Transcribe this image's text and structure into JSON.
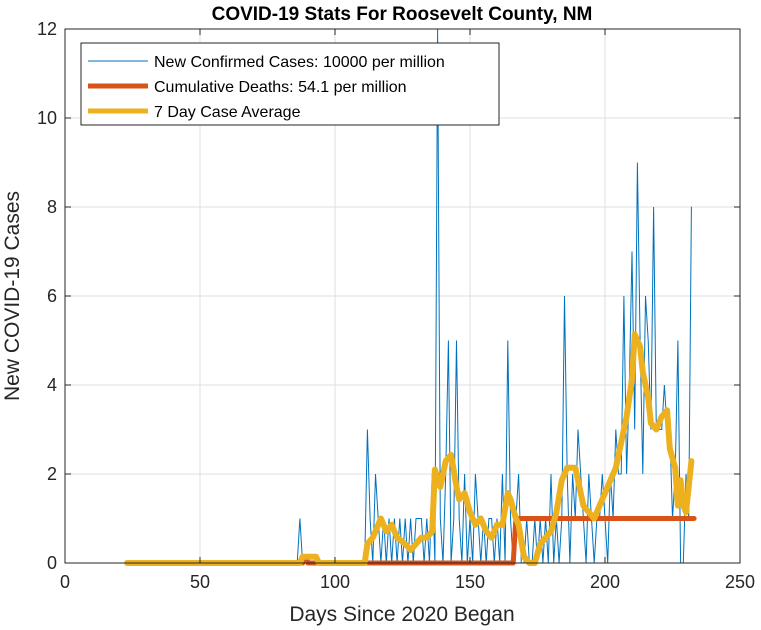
{
  "chart_data": {
    "type": "line",
    "title": "COVID-19 Stats For Roosevelt County, NM",
    "xlabel": "Days Since 2020 Began",
    "ylabel": "New COVID-19 Cases",
    "xlim": [
      0,
      250
    ],
    "ylim": [
      0,
      12
    ],
    "xticks": [
      0,
      50,
      100,
      150,
      200,
      250
    ],
    "yticks": [
      0,
      2,
      4,
      6,
      8,
      10,
      12
    ],
    "grid": true,
    "legend_position": "top-left",
    "series": [
      {
        "name": "New Confirmed Cases: 10000 per million",
        "color": "#0072BD",
        "points": [
          [
            23,
            0
          ],
          [
            86,
            0
          ],
          [
            87,
            1
          ],
          [
            88,
            0
          ],
          [
            111,
            0
          ],
          [
            112,
            3
          ],
          [
            113,
            1
          ],
          [
            114,
            0
          ],
          [
            115,
            2
          ],
          [
            116,
            1
          ],
          [
            117,
            0
          ],
          [
            118,
            1
          ],
          [
            119,
            0
          ],
          [
            120,
            1
          ],
          [
            121,
            0
          ],
          [
            122,
            1
          ],
          [
            123,
            0
          ],
          [
            124,
            1
          ],
          [
            125,
            0
          ],
          [
            126,
            1
          ],
          [
            127,
            0
          ],
          [
            128,
            1
          ],
          [
            129,
            0
          ],
          [
            130,
            1
          ],
          [
            131,
            1
          ],
          [
            132,
            1
          ],
          [
            133,
            0
          ],
          [
            134,
            1
          ],
          [
            135,
            0
          ],
          [
            136,
            2
          ],
          [
            137,
            0
          ],
          [
            138,
            12
          ],
          [
            139,
            1
          ],
          [
            140,
            0
          ],
          [
            141,
            2
          ],
          [
            142,
            5
          ],
          [
            143,
            0
          ],
          [
            144,
            1
          ],
          [
            145,
            5
          ],
          [
            146,
            1
          ],
          [
            147,
            0
          ],
          [
            148,
            2
          ],
          [
            149,
            0
          ],
          [
            150,
            1
          ],
          [
            151,
            0
          ],
          [
            152,
            2
          ],
          [
            153,
            1
          ],
          [
            154,
            0
          ],
          [
            155,
            1
          ],
          [
            156,
            0
          ],
          [
            157,
            1
          ],
          [
            158,
            1
          ],
          [
            159,
            0
          ],
          [
            160,
            1
          ],
          [
            161,
            0
          ],
          [
            162,
            2
          ],
          [
            163,
            0
          ],
          [
            164,
            5
          ],
          [
            165,
            1
          ],
          [
            166,
            0
          ],
          [
            167,
            1
          ],
          [
            168,
            2
          ],
          [
            169,
            0
          ],
          [
            170,
            0
          ],
          [
            171,
            1
          ],
          [
            172,
            0
          ],
          [
            173,
            0
          ],
          [
            174,
            1
          ],
          [
            175,
            0
          ],
          [
            176,
            1
          ],
          [
            177,
            0
          ],
          [
            178,
            1
          ],
          [
            179,
            0
          ],
          [
            180,
            2
          ],
          [
            181,
            0
          ],
          [
            182,
            1
          ],
          [
            183,
            0
          ],
          [
            184,
            1
          ],
          [
            185,
            6
          ],
          [
            186,
            2
          ],
          [
            187,
            0
          ],
          [
            188,
            2
          ],
          [
            189,
            1
          ],
          [
            190,
            3
          ],
          [
            191,
            2
          ],
          [
            192,
            1
          ],
          [
            193,
            0
          ],
          [
            194,
            2
          ],
          [
            195,
            1
          ],
          [
            196,
            0
          ],
          [
            197,
            1
          ],
          [
            198,
            1
          ],
          [
            199,
            2
          ],
          [
            200,
            1
          ],
          [
            201,
            0
          ],
          [
            202,
            2
          ],
          [
            203,
            1
          ],
          [
            204,
            3
          ],
          [
            205,
            2
          ],
          [
            206,
            2
          ],
          [
            207,
            6
          ],
          [
            208,
            2
          ],
          [
            209,
            4
          ],
          [
            210,
            7
          ],
          [
            211,
            3
          ],
          [
            212,
            9
          ],
          [
            213,
            5
          ],
          [
            214,
            2
          ],
          [
            215,
            6
          ],
          [
            216,
            5
          ],
          [
            217,
            3
          ],
          [
            218,
            8
          ],
          [
            219,
            3
          ],
          [
            220,
            3
          ],
          [
            221,
            3
          ],
          [
            222,
            4
          ],
          [
            223,
            3
          ],
          [
            224,
            3
          ],
          [
            225,
            1
          ],
          [
            226,
            2
          ],
          [
            227,
            5
          ],
          [
            228,
            0
          ],
          [
            229,
            0
          ],
          [
            230,
            2
          ],
          [
            231,
            1
          ],
          [
            232,
            8
          ]
        ]
      },
      {
        "name": "Cumulative Deaths: 54.1 per million",
        "color": "#D95319",
        "points": [
          [
            23,
            0
          ],
          [
            88,
            0
          ],
          [
            88.5,
            0.1
          ],
          [
            89.5,
            0.1
          ],
          [
            90,
            0
          ],
          [
            166,
            0
          ],
          [
            167,
            1
          ],
          [
            233,
            1
          ]
        ]
      },
      {
        "name": "7 Day Case Average",
        "color": "#EDB120",
        "points": [
          [
            23,
            0
          ],
          [
            87,
            0
          ],
          [
            88,
            0.14
          ],
          [
            93,
            0.14
          ],
          [
            94,
            0
          ],
          [
            111,
            0
          ],
          [
            112,
            0.43
          ],
          [
            114,
            0.57
          ],
          [
            116,
            0.86
          ],
          [
            117,
            1
          ],
          [
            119,
            0.71
          ],
          [
            121,
            0.86
          ],
          [
            123,
            0.57
          ],
          [
            126,
            0.43
          ],
          [
            128,
            0.29
          ],
          [
            130,
            0.43
          ],
          [
            132,
            0.57
          ],
          [
            134,
            0.57
          ],
          [
            136,
            0.71
          ],
          [
            137,
            2.1
          ],
          [
            139,
            1.71
          ],
          [
            141,
            2.29
          ],
          [
            143,
            2.43
          ],
          [
            145,
            1.71
          ],
          [
            146,
            1.43
          ],
          [
            148,
            1.57
          ],
          [
            150,
            1.14
          ],
          [
            152,
            0.86
          ],
          [
            154,
            1
          ],
          [
            156,
            0.71
          ],
          [
            158,
            0.57
          ],
          [
            160,
            0.86
          ],
          [
            162,
            0.86
          ],
          [
            164,
            1.57
          ],
          [
            165,
            1.43
          ],
          [
            167,
            1
          ],
          [
            168,
            0.86
          ],
          [
            170,
            0.14
          ],
          [
            172,
            0
          ],
          [
            174,
            0
          ],
          [
            176,
            0.43
          ],
          [
            178,
            0.57
          ],
          [
            180,
            0.71
          ],
          [
            182,
            1.14
          ],
          [
            184,
            1.86
          ],
          [
            186,
            2.14
          ],
          [
            189,
            2.14
          ],
          [
            190,
            1.86
          ],
          [
            192,
            1.29
          ],
          [
            194,
            1.14
          ],
          [
            196,
            1
          ],
          [
            198,
            1.29
          ],
          [
            200,
            1.57
          ],
          [
            202,
            1.86
          ],
          [
            204,
            2.14
          ],
          [
            206,
            2.71
          ],
          [
            208,
            3.29
          ],
          [
            210,
            4.14
          ],
          [
            211,
            5.14
          ],
          [
            213,
            4.86
          ],
          [
            214,
            4.29
          ],
          [
            216,
            3.71
          ],
          [
            217,
            3.14
          ],
          [
            219,
            3
          ],
          [
            221,
            3.29
          ],
          [
            223,
            3.43
          ],
          [
            224,
            2.57
          ],
          [
            226,
            2.14
          ],
          [
            227,
            1.29
          ],
          [
            228,
            1.86
          ],
          [
            229,
            1.29
          ],
          [
            230,
            1.14
          ],
          [
            232,
            2.29
          ]
        ]
      }
    ]
  }
}
